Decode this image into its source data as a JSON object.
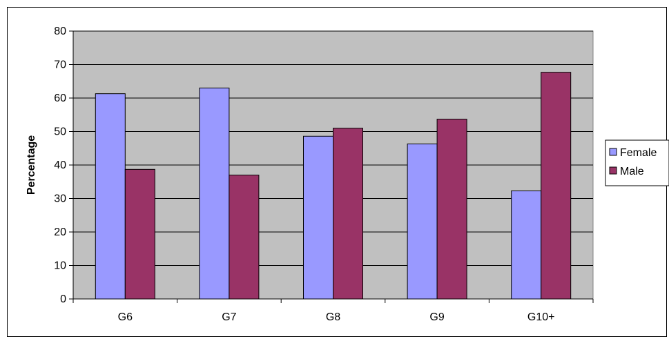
{
  "chart_data": {
    "type": "bar",
    "title": "",
    "xlabel": "",
    "ylabel": "Percentage",
    "ylim": [
      0,
      80
    ],
    "ytick_step": 10,
    "categories": [
      "G6",
      "G7",
      "G8",
      "G9",
      "G10+"
    ],
    "series": [
      {
        "name": "Female",
        "values": [
          61.3,
          63.0,
          48.6,
          46.3,
          32.3
        ],
        "color": "#9999ff"
      },
      {
        "name": "Male",
        "values": [
          38.7,
          37.0,
          51.0,
          53.7,
          67.7
        ],
        "color": "#993366"
      }
    ],
    "plot_background": "#c0c0c0",
    "grid": true,
    "legend_position": "right"
  }
}
